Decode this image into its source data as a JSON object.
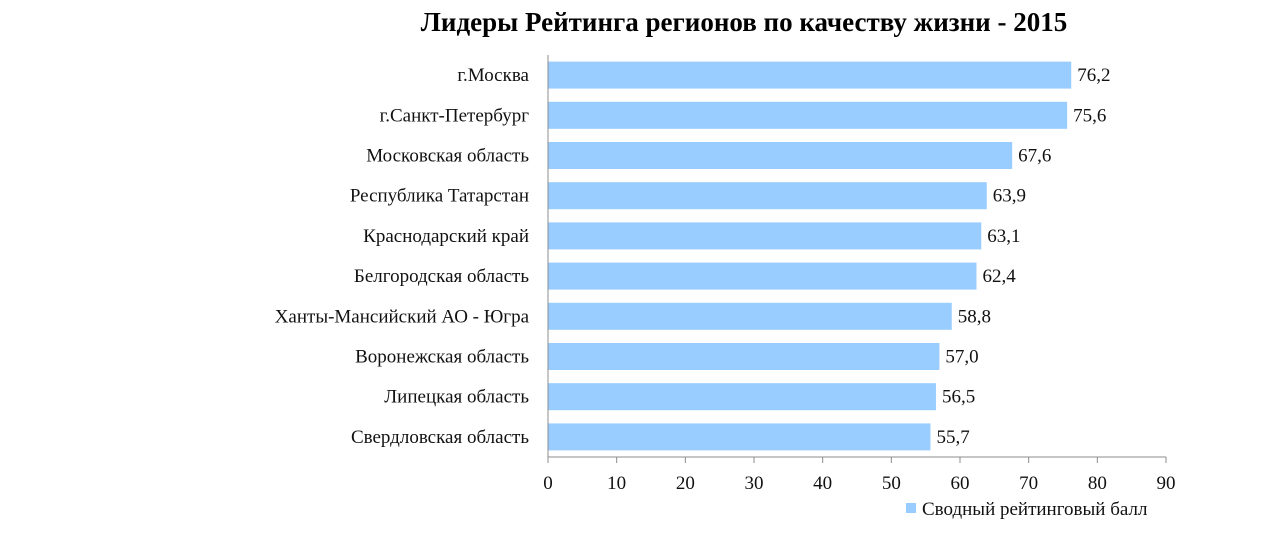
{
  "chart_data": {
    "type": "bar",
    "orientation": "horizontal",
    "title": "Лидеры Рейтинга регионов по качеству жизни - 2015",
    "categories": [
      "г.Москва",
      "г.Санкт-Петербург",
      "Московская область",
      "Республика Татарстан",
      "Краснодарский край",
      "Белгородская область",
      "Ханты-Мансийский АО - Югра",
      "Воронежская область",
      "Липецкая область",
      "Свердловская область"
    ],
    "series": [
      {
        "name": "Сводный рейтинговый балл",
        "values": [
          76.2,
          75.6,
          67.6,
          63.9,
          63.1,
          62.4,
          58.8,
          57.0,
          56.5,
          55.7
        ],
        "labels": [
          "76,2",
          "75,6",
          "67,6",
          "63,9",
          "63,1",
          "62,4",
          "58,8",
          "57,0",
          "56,5",
          "55,7"
        ],
        "color": "#99CCFF"
      }
    ],
    "xlim": [
      0,
      90
    ],
    "xticks": [
      0,
      10,
      20,
      30,
      40,
      50,
      60,
      70,
      80,
      90
    ],
    "grid": false,
    "legend_position": "bottom-right"
  }
}
